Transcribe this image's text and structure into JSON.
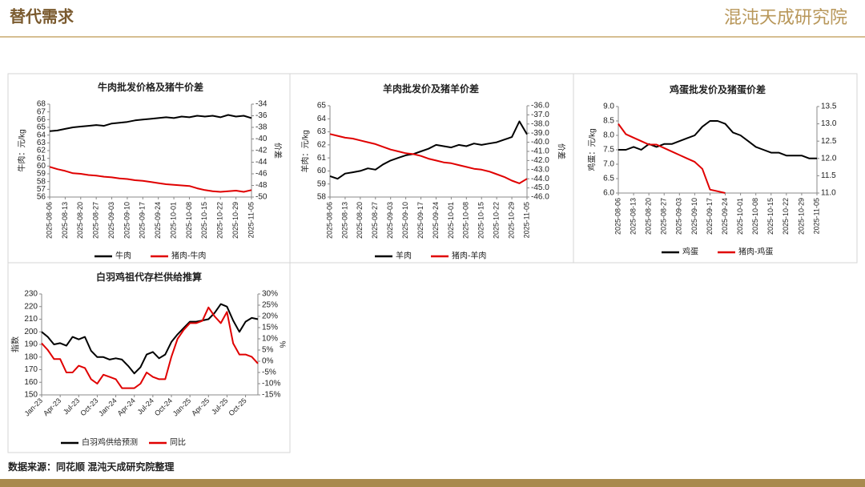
{
  "header": {
    "title": "替代需求",
    "logo": "混沌天成研究院"
  },
  "footer": {
    "source": "数据来源：同花顺 混沌天成研究院整理"
  },
  "chart_data": [
    {
      "type": "line",
      "title": "牛肉批发价格及猪牛价差",
      "y_label": "牛肉：元/kg",
      "y2_label": "价差",
      "legend": "bottom",
      "categories": [
        "2025-08-06",
        null,
        "2025-08-13",
        null,
        "2025-08-20",
        null,
        "2025-08-27",
        null,
        "2025-09-03",
        null,
        "2025-09-10",
        null,
        "2025-09-17",
        null,
        "2025-09-24",
        null,
        "2025-10-01",
        null,
        "2025-10-08",
        null,
        "2025-10-15",
        null,
        "2025-10-22",
        null,
        "2025-10-29",
        null,
        "2025-11-05"
      ],
      "series": [
        {
          "name": "牛肉",
          "color": "#000000",
          "values": [
            64.5,
            64.6,
            64.8,
            65.0,
            65.1,
            65.2,
            65.3,
            65.2,
            65.5,
            65.6,
            65.7,
            65.9,
            66.0,
            66.1,
            66.2,
            66.3,
            66.2,
            66.4,
            66.3,
            66.5,
            66.4,
            66.5,
            66.3,
            66.6,
            66.4,
            66.5,
            66.2
          ]
        },
        {
          "name": "猪肉-牛肉",
          "color": "#e00000",
          "axis": "y2",
          "values": [
            -44.8,
            -45.2,
            -45.5,
            -45.9,
            -46.0,
            -46.2,
            -46.3,
            -46.5,
            -46.6,
            -46.8,
            -46.9,
            -47.1,
            -47.2,
            -47.4,
            -47.6,
            -47.8,
            -47.9,
            -48.0,
            -48.1,
            -48.5,
            -48.8,
            -49.0,
            -49.1,
            -49.0,
            -48.9,
            -49.1,
            -48.8
          ]
        }
      ],
      "ylim": [
        56,
        68
      ],
      "yticks": [
        56,
        57,
        58,
        59,
        60,
        61,
        62,
        63,
        64,
        65,
        66,
        67,
        68
      ],
      "y2lim": [
        -50,
        -34
      ],
      "y2ticks": [
        -50,
        -48,
        -46,
        -44,
        -42,
        -40,
        -38,
        -36,
        -34
      ]
    },
    {
      "type": "line",
      "title": "羊肉批发价及猪羊价差",
      "y_label": "羊肉：元/kg",
      "y2_label": "价差",
      "legend": "bottom",
      "categories": [
        "2025-08-06",
        null,
        "2025-08-13",
        null,
        "2025-08-20",
        null,
        "2025-08-27",
        null,
        "2025-09-03",
        null,
        "2025-09-10",
        null,
        "2025-09-17",
        null,
        "2025-09-24",
        null,
        "2025-10-01",
        null,
        "2025-10-08",
        null,
        "2025-10-15",
        null,
        "2025-10-22",
        null,
        "2025-10-29",
        null,
        "2025-11-05"
      ],
      "series": [
        {
          "name": "羊肉",
          "color": "#000000",
          "values": [
            59.6,
            59.4,
            59.8,
            59.9,
            60.0,
            60.2,
            60.1,
            60.5,
            60.8,
            61.0,
            61.2,
            61.3,
            61.5,
            61.7,
            62.0,
            61.9,
            61.8,
            62.0,
            61.9,
            62.1,
            62.0,
            62.1,
            62.2,
            62.4,
            62.6,
            63.8,
            62.8
          ]
        },
        {
          "name": "猪肉-羊肉",
          "color": "#e00000",
          "axis": "y2",
          "values": [
            -39.1,
            -39.3,
            -39.5,
            -39.6,
            -39.8,
            -40.0,
            -40.2,
            -40.5,
            -40.8,
            -41.0,
            -41.2,
            -41.3,
            -41.5,
            -41.8,
            -42.0,
            -42.2,
            -42.3,
            -42.5,
            -42.7,
            -42.9,
            -43.0,
            -43.2,
            -43.5,
            -43.8,
            -44.2,
            -44.5,
            -44.0
          ]
        }
      ],
      "ylim": [
        58,
        65
      ],
      "yticks": [
        58,
        59,
        60,
        61,
        62,
        63,
        64,
        65
      ],
      "y2lim": [
        -46,
        -36
      ],
      "y2ticks": [
        {
          "value": -46,
          "label": "-46.0"
        },
        {
          "value": -45,
          "label": "-45.0"
        },
        {
          "value": -44,
          "label": "-44.0"
        },
        {
          "value": -43,
          "label": "-43.0"
        },
        {
          "value": -42,
          "label": "-42.0"
        },
        {
          "value": -41,
          "label": "-41.0"
        },
        {
          "value": -40,
          "label": "-40.0"
        },
        {
          "value": -39,
          "label": "-39.0"
        },
        {
          "value": -38,
          "label": "-38.0"
        },
        {
          "value": -37,
          "label": "-37.0"
        },
        {
          "value": -36,
          "label": "-36.0"
        }
      ]
    },
    {
      "type": "line",
      "title": "鸡蛋批发价及猪蛋价差",
      "y_label": "鸡蛋：元/kg",
      "legend": "bottom",
      "categories": [
        "2025-08-06",
        null,
        "2025-08-13",
        null,
        "2025-08-20",
        null,
        "2025-08-27",
        null,
        "2025-09-03",
        null,
        "2025-09-10",
        null,
        "2025-09-17",
        null,
        "2025-09-24",
        null,
        "2025-10-01",
        null,
        "2025-10-08",
        null,
        "2025-10-15",
        null,
        "2025-10-22",
        null,
        "2025-10-29",
        null,
        "2025-11-05"
      ],
      "series": [
        {
          "name": "鸡蛋",
          "color": "#000000",
          "values": [
            7.5,
            7.5,
            7.6,
            7.5,
            7.7,
            7.6,
            7.7,
            7.7,
            7.8,
            7.9,
            8.0,
            8.3,
            8.5,
            8.5,
            8.4,
            8.1,
            8.0,
            7.8,
            7.6,
            7.5,
            7.4,
            7.4,
            7.3,
            7.3,
            7.3,
            7.2,
            7.2
          ]
        },
        {
          "name": "猪肉-鸡蛋",
          "color": "#e00000",
          "axis": "y2",
          "values": [
            13.0,
            12.7,
            12.6,
            12.5,
            12.4,
            12.4,
            12.3,
            12.2,
            12.1,
            12.0,
            11.9,
            11.7,
            11.1,
            11.05,
            11.0,
            null,
            null,
            null,
            null,
            null,
            null,
            null,
            null,
            null,
            null,
            null,
            null
          ]
        }
      ],
      "ylim": [
        6,
        9
      ],
      "yticks": [
        {
          "value": 6,
          "label": "6.0"
        },
        6.5,
        {
          "value": 7,
          "label": "7.0"
        },
        7.5,
        {
          "value": 8,
          "label": "8.0"
        },
        8.5,
        {
          "value": 9,
          "label": "9.0"
        }
      ],
      "y2lim": [
        11,
        13.5
      ],
      "y2ticks": [
        {
          "value": 11,
          "label": "11.0"
        },
        11.5,
        {
          "value": 12,
          "label": "12.0"
        },
        12.5,
        {
          "value": 13,
          "label": "13.0"
        },
        13.5
      ]
    },
    {
      "type": "line",
      "title": "白羽鸡祖代存栏供给推算",
      "y_label": "指数",
      "y2_label": "%",
      "legend": "bottom",
      "categories": [
        "Jan-23",
        null,
        null,
        "Apr-23",
        null,
        null,
        "Jul-23",
        null,
        null,
        "Oct-23",
        null,
        null,
        "Jan-24",
        null,
        null,
        "Apr-24",
        null,
        null,
        "Jul-24",
        null,
        null,
        "Oct-24",
        null,
        null,
        "Jan-25",
        null,
        null,
        "Apr-25",
        null,
        null,
        "Jul-25",
        null,
        null,
        "Oct-25",
        null,
        null
      ],
      "series": [
        {
          "name": "白羽鸡供给预测",
          "color": "#000000",
          "values": [
            200,
            196,
            190,
            191,
            189,
            196,
            194,
            196,
            185,
            180,
            180,
            178,
            179,
            178,
            173,
            167,
            172,
            182,
            184,
            179,
            182,
            192,
            198,
            203,
            208,
            208,
            209,
            210,
            215,
            222,
            220,
            209,
            200,
            208,
            211,
            210
          ]
        },
        {
          "name": "同比",
          "color": "#e00000",
          "axis": "y2",
          "values": [
            8,
            5,
            1,
            1,
            -5,
            -5,
            -2,
            -3,
            -8,
            -10,
            -6,
            -7,
            -8,
            -12,
            -12,
            -12,
            -10,
            -5,
            -7,
            -8,
            -8,
            2,
            10,
            14,
            17,
            17,
            18,
            24,
            20,
            17,
            22,
            8,
            3,
            3,
            2,
            -1
          ]
        }
      ],
      "ylim": [
        150,
        230
      ],
      "yticks": [
        150,
        160,
        170,
        180,
        190,
        200,
        210,
        220,
        230
      ],
      "y2lim": [
        -15,
        30
      ],
      "y2ticks": [
        {
          "value": -15,
          "label": "-15%"
        },
        {
          "value": -10,
          "label": "-10%"
        },
        {
          "value": -5,
          "label": "-5%"
        },
        {
          "value": 0,
          "label": "0%"
        },
        {
          "value": 5,
          "label": "5%"
        },
        {
          "value": 10,
          "label": "10%"
        },
        {
          "value": 15,
          "label": "15%"
        },
        {
          "value": 20,
          "label": "20%"
        },
        {
          "value": 25,
          "label": "25%"
        },
        {
          "value": 30,
          "label": "30%"
        }
      ]
    }
  ]
}
